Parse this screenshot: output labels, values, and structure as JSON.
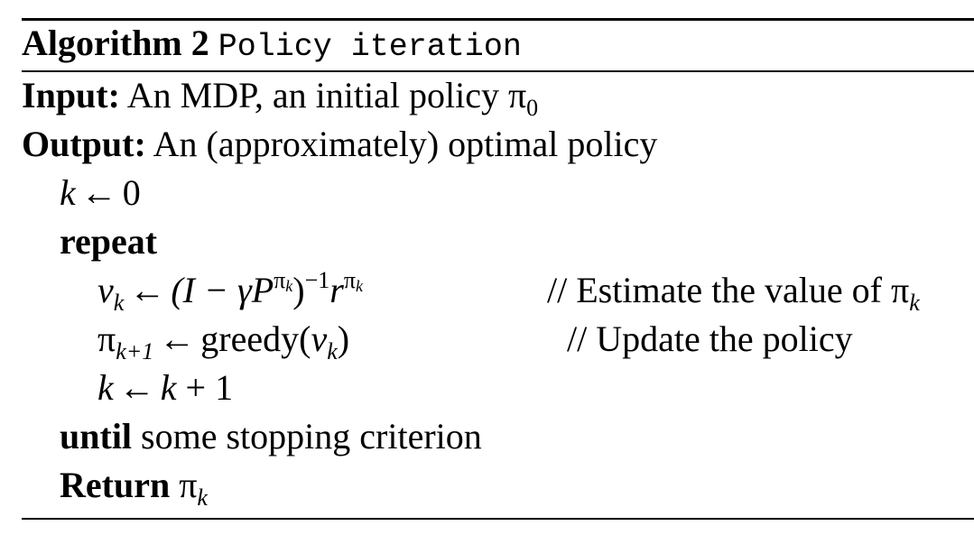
{
  "algorithm": {
    "label": "Algorithm 2",
    "name": "Policy iteration"
  },
  "input": {
    "keyword": "Input:",
    "text": "An MDP, an initial policy π",
    "symbol_sub": "0"
  },
  "output": {
    "keyword": "Output:",
    "text": "An (approximately) optimal policy"
  },
  "steps": {
    "init_var": "k",
    "init_arrow": "←",
    "init_value": "0",
    "repeat_keyword": "repeat",
    "value_lhs": "v",
    "value_lhs_sub": "k",
    "value_arrow": "←",
    "value_rhs_open": "(I − γP",
    "value_rhs_sup": "π",
    "value_rhs_sup_sub": "k",
    "value_rhs_close": ")",
    "value_inverse": "−1",
    "value_r": "r",
    "value_r_sup": "π",
    "value_r_sup_sub": "k",
    "value_comment": "// Estimate the value of π",
    "value_comment_sub": "k",
    "policy_lhs": "π",
    "policy_lhs_sub": "k+1",
    "policy_arrow": "←",
    "policy_rhs": "greedy(",
    "policy_rhs_var": "v",
    "policy_rhs_var_sub": "k",
    "policy_rhs_close": ")",
    "policy_comment": "// Update the policy",
    "inc_var": "k",
    "inc_arrow": "←",
    "inc_rhs_var": "k",
    "inc_rhs_rest": " + 1",
    "until_keyword": "until",
    "until_text": " some stopping criterion",
    "return_keyword": "Return",
    "return_symbol": "π",
    "return_sub": "k"
  }
}
